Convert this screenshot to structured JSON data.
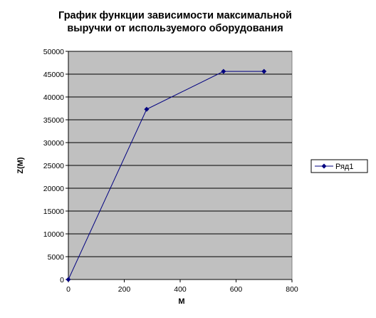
{
  "chart_data": {
    "type": "line",
    "title": [
      "График функции зависимости максимальной",
      "выручки от используемого оборудования"
    ],
    "xlabel": "M",
    "ylabel": "Z(M)",
    "xlim": [
      0,
      800
    ],
    "ylim": [
      0,
      50000
    ],
    "x_ticks": [
      0,
      200,
      400,
      600,
      800
    ],
    "y_ticks": [
      0,
      5000,
      10000,
      15000,
      20000,
      25000,
      30000,
      35000,
      40000,
      45000,
      50000
    ],
    "grid": "horizontal",
    "plot_background": "#c0c0c0",
    "legend_position": "right",
    "series": [
      {
        "name": "Ряд1",
        "color": "#000080",
        "marker": "diamond",
        "x": [
          0,
          280,
          555,
          700
        ],
        "y": [
          0,
          37300,
          45600,
          45600
        ]
      }
    ]
  }
}
